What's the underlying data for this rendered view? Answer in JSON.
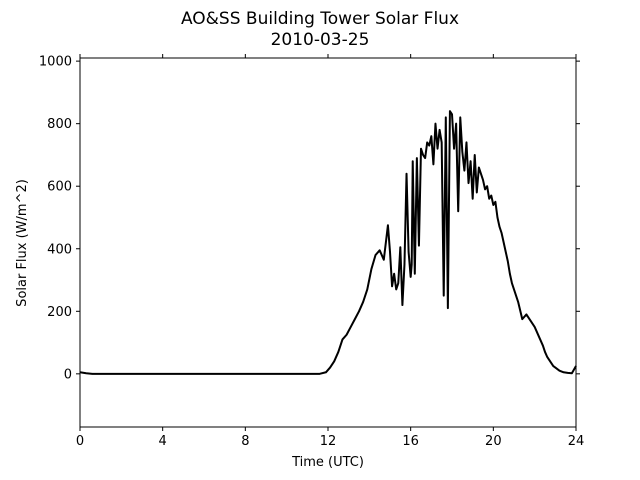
{
  "chart_data": {
    "type": "line",
    "title": "AO&SS Building Tower Solar Flux",
    "subtitle": "2010-03-25",
    "xlabel": "Time (UTC)",
    "ylabel": "Solar Flux (W/m^2)",
    "xlim": [
      0,
      24
    ],
    "ylim": [
      -170,
      1010
    ],
    "xticks": [
      0,
      4,
      8,
      12,
      16,
      20,
      24
    ],
    "yticks": [
      0,
      200,
      400,
      600,
      800,
      1000
    ],
    "grid": false,
    "line_color": "#000000",
    "series": [
      {
        "x": [
          0,
          0.3,
          0.6,
          2,
          4,
          6,
          8,
          10,
          11.6,
          11.9,
          12.1,
          12.3,
          12.5,
          12.7,
          12.9,
          13.1,
          13.3,
          13.5,
          13.7,
          13.9,
          14.1,
          14.3,
          14.5,
          14.7,
          14.9,
          15.0,
          15.1,
          15.2,
          15.3,
          15.4,
          15.5,
          15.6,
          15.7,
          15.8,
          15.9,
          16.0,
          16.05,
          16.1,
          16.2,
          16.3,
          16.4,
          16.5,
          16.6,
          16.7,
          16.8,
          16.9,
          17.0,
          17.1,
          17.2,
          17.3,
          17.4,
          17.5,
          17.6,
          17.7,
          17.8,
          17.9,
          18.0,
          18.1,
          18.2,
          18.3,
          18.4,
          18.5,
          18.6,
          18.7,
          18.8,
          18.9,
          19.0,
          19.1,
          19.2,
          19.3,
          19.4,
          19.5,
          19.6,
          19.7,
          19.8,
          19.9,
          20.0,
          20.1,
          20.2,
          20.3,
          20.4,
          20.5,
          20.6,
          20.7,
          20.8,
          20.9,
          21.0,
          21.2,
          21.4,
          21.6,
          21.8,
          22.0,
          22.2,
          22.4,
          22.5,
          22.6,
          22.7,
          22.8,
          22.9,
          23.0,
          23.2,
          23.4,
          23.6,
          23.8,
          24.0
        ],
        "y": [
          5,
          2,
          0,
          0,
          0,
          0,
          0,
          0,
          0,
          5,
          20,
          40,
          70,
          110,
          125,
          150,
          175,
          200,
          230,
          270,
          335,
          380,
          395,
          365,
          475,
          390,
          280,
          320,
          270,
          290,
          405,
          220,
          350,
          640,
          390,
          310,
          350,
          680,
          320,
          690,
          410,
          720,
          700,
          690,
          740,
          730,
          760,
          670,
          800,
          720,
          780,
          740,
          250,
          820,
          210,
          840,
          830,
          720,
          800,
          520,
          820,
          710,
          650,
          740,
          610,
          680,
          560,
          700,
          580,
          660,
          640,
          620,
          590,
          600,
          560,
          570,
          540,
          550,
          500,
          470,
          450,
          420,
          390,
          360,
          320,
          290,
          270,
          230,
          175,
          190,
          170,
          150,
          120,
          90,
          70,
          55,
          45,
          35,
          25,
          20,
          10,
          5,
          3,
          2,
          25
        ]
      }
    ]
  }
}
